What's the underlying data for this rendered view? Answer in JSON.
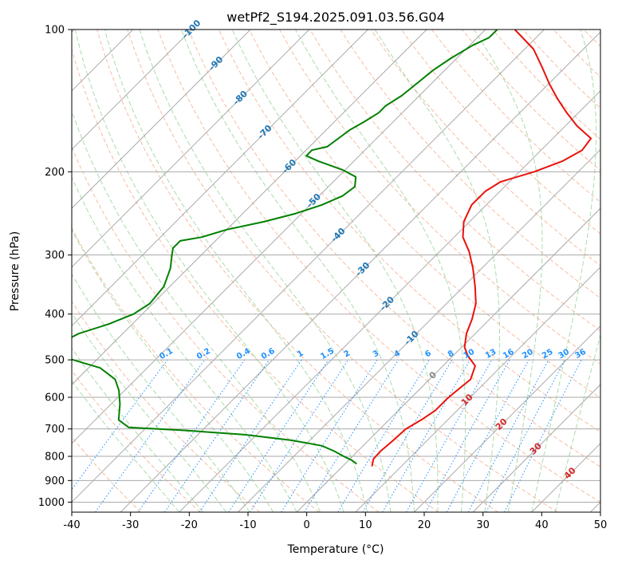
{
  "chart_data": {
    "type": "line",
    "subtype": "skew-T log-p diagram",
    "title": "wetPf2_S194.2025.091.03.56.G04",
    "xlabel": "Temperature (°C)",
    "ylabel": "Pressure (hPa)",
    "xlim": [
      -40,
      50
    ],
    "ylim": [
      1050,
      100
    ],
    "y_scale": "log",
    "grid": true,
    "x_ticks": [
      -40,
      -30,
      -20,
      -10,
      0,
      10,
      20,
      30,
      40,
      50
    ],
    "y_ticks": [
      100,
      200,
      300,
      400,
      500,
      600,
      700,
      800,
      900,
      1000
    ],
    "colors": {
      "temperature": "#e8120c",
      "dewpoint": "#008000",
      "isotherm_labels": "#1f77b4",
      "mixing_ratio": "#1e90ff",
      "dry_adiabat": "#f4a582",
      "moist_adiabat": "#8fcf8f",
      "surface_label": "#d62728"
    },
    "series": [
      {
        "id": "temperature",
        "points": [
          {
            "t": 5.0,
            "p": 840
          },
          {
            "t": 4.0,
            "p": 810
          },
          {
            "t": 3.9,
            "p": 780
          },
          {
            "t": 4.2,
            "p": 740
          },
          {
            "t": 4.4,
            "p": 700
          },
          {
            "t": 5.5,
            "p": 670
          },
          {
            "t": 6.3,
            "p": 640
          },
          {
            "t": 6.3,
            "p": 605
          },
          {
            "t": 6.5,
            "p": 585
          },
          {
            "t": 7.0,
            "p": 550
          },
          {
            "t": 5.5,
            "p": 515
          },
          {
            "t": 2.5,
            "p": 490
          },
          {
            "t": 0.5,
            "p": 470
          },
          {
            "t": -1.5,
            "p": 440
          },
          {
            "t": -3.0,
            "p": 410
          },
          {
            "t": -5.0,
            "p": 380
          },
          {
            "t": -8.0,
            "p": 350
          },
          {
            "t": -11.5,
            "p": 320
          },
          {
            "t": -15.0,
            "p": 295
          },
          {
            "t": -18.5,
            "p": 275
          },
          {
            "t": -21.0,
            "p": 255
          },
          {
            "t": -22.5,
            "p": 235
          },
          {
            "t": -22.5,
            "p": 220
          },
          {
            "t": -21.5,
            "p": 210
          },
          {
            "t": -17.5,
            "p": 200
          },
          {
            "t": -14.5,
            "p": 190
          },
          {
            "t": -13.0,
            "p": 180
          },
          {
            "t": -13.5,
            "p": 170
          },
          {
            "t": -18.0,
            "p": 160
          },
          {
            "t": -22.0,
            "p": 150
          },
          {
            "t": -26.0,
            "p": 140
          },
          {
            "t": -30.0,
            "p": 130
          },
          {
            "t": -34.0,
            "p": 120
          },
          {
            "t": -38.5,
            "p": 110
          },
          {
            "t": -45.0,
            "p": 100
          }
        ]
      },
      {
        "id": "dewpoint",
        "points": [
          {
            "t": 2.0,
            "p": 830
          },
          {
            "t": 0.5,
            "p": 815
          },
          {
            "t": -1.5,
            "p": 800
          },
          {
            "t": -4.0,
            "p": 780
          },
          {
            "t": -7.0,
            "p": 760
          },
          {
            "t": -13.0,
            "p": 740
          },
          {
            "t": -22.0,
            "p": 720
          },
          {
            "t": -33.0,
            "p": 705
          },
          {
            "t": -43.0,
            "p": 695
          },
          {
            "t": -46.0,
            "p": 670
          },
          {
            "t": -48.5,
            "p": 620
          },
          {
            "t": -51.0,
            "p": 580
          },
          {
            "t": -53.5,
            "p": 550
          },
          {
            "t": -58.0,
            "p": 520
          },
          {
            "t": -64.0,
            "p": 500
          },
          {
            "t": -68.0,
            "p": 480
          },
          {
            "t": -69.0,
            "p": 460
          },
          {
            "t": -67.5,
            "p": 440
          },
          {
            "t": -64.0,
            "p": 420
          },
          {
            "t": -61.5,
            "p": 400
          },
          {
            "t": -60.5,
            "p": 380
          },
          {
            "t": -61.0,
            "p": 350
          },
          {
            "t": -63.0,
            "p": 320
          },
          {
            "t": -65.0,
            "p": 300
          },
          {
            "t": -66.0,
            "p": 290
          },
          {
            "t": -66.0,
            "p": 280
          },
          {
            "t": -63.0,
            "p": 275
          },
          {
            "t": -60.0,
            "p": 265
          },
          {
            "t": -55.0,
            "p": 255
          },
          {
            "t": -51.0,
            "p": 245
          },
          {
            "t": -48.0,
            "p": 235
          },
          {
            "t": -46.0,
            "p": 225
          },
          {
            "t": -45.5,
            "p": 215
          },
          {
            "t": -47.0,
            "p": 205
          },
          {
            "t": -50.5,
            "p": 198
          },
          {
            "t": -56.0,
            "p": 190
          },
          {
            "t": -59.0,
            "p": 185
          },
          {
            "t": -59.0,
            "p": 180
          },
          {
            "t": -57.0,
            "p": 177
          },
          {
            "t": -56.5,
            "p": 170
          },
          {
            "t": -56.0,
            "p": 163
          },
          {
            "t": -55.0,
            "p": 157
          },
          {
            "t": -54.0,
            "p": 150
          },
          {
            "t": -54.0,
            "p": 145
          },
          {
            "t": -53.0,
            "p": 138
          },
          {
            "t": -52.5,
            "p": 130
          },
          {
            "t": -52.0,
            "p": 122
          },
          {
            "t": -51.0,
            "p": 115
          },
          {
            "t": -49.5,
            "p": 108
          },
          {
            "t": -48.0,
            "p": 104
          },
          {
            "t": -48.0,
            "p": 100
          }
        ]
      }
    ],
    "isotherm_labels": [
      "-100",
      "-90",
      "-80",
      "-70",
      "-60",
      "-50",
      "-40",
      "-30",
      "-20",
      "-10",
      "0",
      "10",
      "20",
      "30",
      "40"
    ],
    "isotherm_label_values": [
      -100,
      -90,
      -80,
      -70,
      -60,
      -50,
      -40,
      -30,
      -20,
      -10,
      0,
      10,
      20,
      30,
      40
    ],
    "mixing_ratio_labels": [
      "0.1",
      "0.2",
      "0.4",
      "0.6",
      "1",
      "1.5",
      "2",
      "3",
      "4",
      "6",
      "8",
      "10",
      "13",
      "16",
      "20",
      "25",
      "30",
      "36"
    ],
    "mixing_ratio_values": [
      0.1,
      0.2,
      0.4,
      0.6,
      1,
      1.5,
      2,
      3,
      4,
      6,
      8,
      10,
      13,
      16,
      20,
      25,
      30,
      36
    ]
  }
}
